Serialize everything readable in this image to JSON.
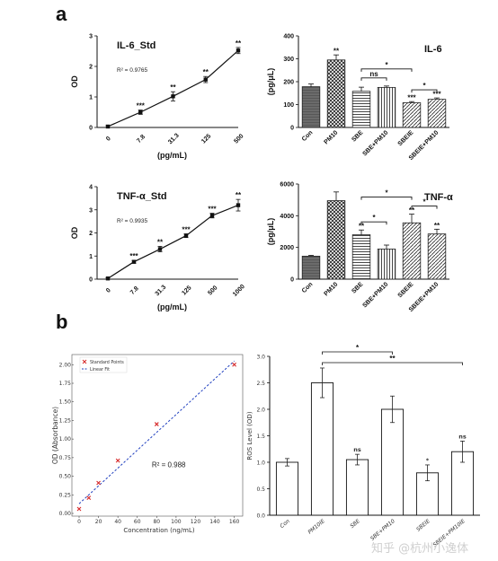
{
  "labels": {
    "panel_a": "a",
    "panel_b": "b"
  },
  "watermark": "知乎 @杭州小逸体",
  "chart_data": [
    {
      "id": "il6-std",
      "type": "line",
      "title": "IL-6_Std",
      "r2": "R² = 0.9765",
      "xlabel": "(pg/mL)",
      "ylabel": "OD",
      "ylim": [
        0,
        3
      ],
      "yticks": [
        "0",
        "1",
        "2",
        "3"
      ],
      "categories": [
        "0",
        "7.8",
        "31.3",
        "125",
        "500"
      ],
      "values": [
        0.03,
        0.5,
        1.02,
        1.57,
        2.52
      ],
      "errors": [
        0.03,
        0.07,
        0.15,
        0.1,
        0.1
      ],
      "sig": [
        "",
        "***",
        "**",
        "**",
        "**"
      ]
    },
    {
      "id": "il6-bar",
      "type": "bar",
      "title": "IL-6",
      "ylabel": "(pg/μL)",
      "ylim": [
        0,
        400
      ],
      "yticks": [
        "0",
        "100",
        "200",
        "300",
        "400"
      ],
      "categories": [
        "Con",
        "PM10",
        "SBE",
        "SBE+PM10",
        "SBEIE",
        "SBEIE+PM10"
      ],
      "values": [
        178,
        295,
        158,
        175,
        108,
        123
      ],
      "errors": [
        12,
        22,
        18,
        6,
        5,
        6
      ],
      "patterns": [
        "dark",
        "cross",
        "hline",
        "vline",
        "diag",
        "diag"
      ],
      "sig": [
        "",
        "**",
        "",
        "",
        "***",
        "***"
      ],
      "brackets": [
        {
          "from": 2,
          "to": 3,
          "label": "ns",
          "level": 0
        },
        {
          "from": 2,
          "to": 4,
          "label": "*",
          "level": 1
        },
        {
          "from": 4,
          "to": 5,
          "label": "*",
          "level": 0
        }
      ]
    },
    {
      "id": "tnf-std",
      "type": "line",
      "title": "TNF-α_Std",
      "r2": "R² = 0.9935",
      "xlabel": "(pg/mL)",
      "ylabel": "OD",
      "ylim": [
        0,
        4
      ],
      "yticks": [
        "0",
        "1",
        "2",
        "3",
        "4"
      ],
      "categories": [
        "0",
        "7.8",
        "31.3",
        "125",
        "500",
        "1000"
      ],
      "values": [
        0.03,
        0.75,
        1.3,
        1.88,
        2.75,
        3.2
      ],
      "errors": [
        0.03,
        0.06,
        0.12,
        0.08,
        0.1,
        0.25
      ],
      "sig": [
        "",
        "***",
        "**",
        "***",
        "***",
        "**"
      ]
    },
    {
      "id": "tnf-bar",
      "type": "bar",
      "title": "TNF-α",
      "ylabel": "(pg/μL)",
      "ylim": [
        0,
        6000
      ],
      "yticks": [
        "0",
        "2000",
        "4000",
        "6000"
      ],
      "categories": [
        "Con",
        "PM10",
        "SBE",
        "SBE+PM10",
        "SBEIE",
        "SBEIE+PM10"
      ],
      "values": [
        1450,
        4950,
        2800,
        1900,
        3550,
        2850
      ],
      "errors": [
        50,
        550,
        300,
        250,
        550,
        300
      ],
      "patterns": [
        "dark",
        "cross",
        "hline",
        "vline",
        "diag",
        "diag"
      ],
      "sig": [
        "",
        "",
        "**",
        "",
        "**",
        "**"
      ],
      "brackets": [
        {
          "from": 2,
          "to": 3,
          "label": "*",
          "level": 0
        },
        {
          "from": 2,
          "to": 4,
          "label": "*",
          "level": 1
        },
        {
          "from": 4,
          "to": 5,
          "label": "*",
          "level": 0
        }
      ]
    },
    {
      "id": "standard-curve",
      "type": "scatter",
      "xlabel": "Concentration (ng/mL)",
      "ylabel": "OD (Absorbance)",
      "xlim": [
        0,
        165
      ],
      "ylim": [
        0,
        2.1
      ],
      "xticks": [
        "0",
        "20",
        "40",
        "60",
        "80",
        "100",
        "120",
        "140",
        "160"
      ],
      "yticks": [
        "0.00",
        "0.25",
        "0.50",
        "0.75",
        "1.00",
        "1.25",
        "1.50",
        "1.75",
        "2.00"
      ],
      "legend": [
        "Standard Points",
        "Linear Fit"
      ],
      "legend_position": "top-left",
      "r2": "R² = 0.988",
      "points": [
        [
          0,
          0.06
        ],
        [
          10,
          0.21
        ],
        [
          20,
          0.41
        ],
        [
          40,
          0.71
        ],
        [
          80,
          1.2
        ],
        [
          160,
          2.0
        ]
      ],
      "fit": [
        [
          0,
          0.13
        ],
        [
          160,
          2.05
        ]
      ],
      "colors": {
        "points": "#d62728",
        "fit": "#1f3fbf"
      }
    },
    {
      "id": "ros",
      "type": "bar",
      "ylabel": "ROS Level (OD)",
      "ylim": [
        0,
        3.0
      ],
      "yticks": [
        "0.0",
        "0.5",
        "1.0",
        "1.5",
        "2.0",
        "2.5",
        "3.0"
      ],
      "categories": [
        "Con",
        "PM10IE",
        "SBE",
        "SBE+PM10",
        "SBEIE",
        "SBEIE+PM10IE"
      ],
      "values": [
        1.0,
        2.5,
        1.05,
        2.0,
        0.8,
        1.2
      ],
      "errors": [
        0.07,
        0.28,
        0.1,
        0.25,
        0.15,
        0.2
      ],
      "sig": [
        "",
        "",
        "ns",
        "",
        "*",
        "ns"
      ],
      "brackets": [
        {
          "from": 1,
          "to": 3,
          "label": "*",
          "level": 0
        },
        {
          "from": 1,
          "to": 5,
          "label": "**",
          "level": 1
        }
      ]
    }
  ]
}
